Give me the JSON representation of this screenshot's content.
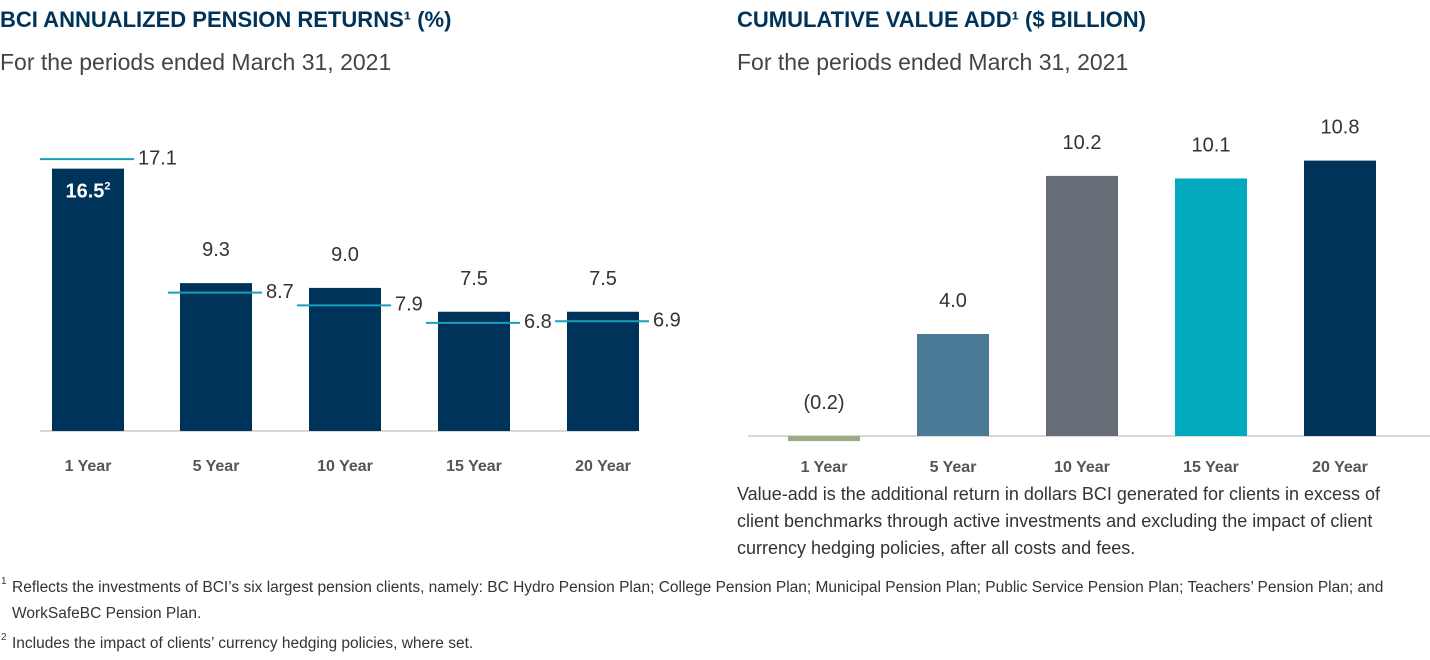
{
  "chart_data": [
    {
      "type": "bar",
      "title": "BCI ANNUALIZED PENSION RETURNS¹ (%)",
      "subtitle": "For the periods ended March 31, 2021",
      "categories": [
        "1 Year",
        "5 Year",
        "10 Year",
        "15 Year",
        "20 Year"
      ],
      "series": [
        {
          "color": "#003359",
          "mark": "bar",
          "values": [
            16.5,
            9.3,
            9.0,
            7.5,
            7.5
          ],
          "value_labels": [
            "16.5",
            "9.3",
            "9.0",
            "7.5",
            "7.5"
          ],
          "value_label_footnotes": [
            "2",
            null,
            null,
            null,
            null
          ]
        },
        {
          "color": "#1a9fba",
          "mark": "level",
          "values": [
            17.1,
            8.7,
            7.9,
            6.8,
            6.9
          ]
        }
      ]
    },
    {
      "type": "bar",
      "title": "CUMULATIVE VALUE ADD¹ ($ BILLION)",
      "subtitle": "For the periods ended March 31, 2021",
      "categories": [
        "1 Year",
        "5 Year",
        "10 Year",
        "15 Year",
        "20 Year"
      ],
      "series": [
        {
          "mark": "bar",
          "colors": [
            "#9aab85",
            "#4a7a96",
            "#676d77",
            "#00a9bd",
            "#003359"
          ],
          "values": [
            -0.2,
            4.0,
            10.2,
            10.1,
            10.8
          ],
          "value_labels": [
            "(0.2)",
            "4.0",
            "10.2",
            "10.1",
            "10.8"
          ]
        }
      ],
      "note": "Value-add is the additional return in dollars BCI generated for clients in excess of client benchmarks through active investments and excluding the impact of client currency hedging policies, after all costs and fees."
    }
  ],
  "footnotes": [
    {
      "marker": "1",
      "text": "Reflects the investments of BCI’s six largest pension clients, namely: BC Hydro Pension Plan; College Pension Plan; Municipal Pension Plan; Public Service Pension Plan; Teachers’ Pension Plan; and WorkSafeBC Pension Plan."
    },
    {
      "marker": "2",
      "text": "Includes the impact of clients’ currency hedging policies, where set."
    }
  ]
}
